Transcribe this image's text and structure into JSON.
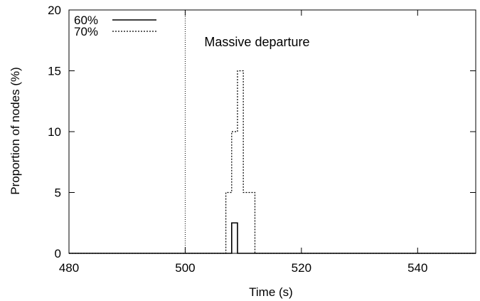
{
  "chart_data": {
    "type": "line",
    "title": "",
    "xlabel": "Time (s)",
    "ylabel": "Proportion of nodes (%)",
    "xlim": [
      480,
      550
    ],
    "ylim": [
      0,
      20
    ],
    "x_ticks": [
      480,
      500,
      520,
      540
    ],
    "y_ticks": [
      0,
      5,
      10,
      15,
      20
    ],
    "grid": false,
    "legend_position": "top-left",
    "series": [
      {
        "name": "60%",
        "style": "solid",
        "color": "#000000",
        "step_points": [
          [
            480,
            0
          ],
          [
            508,
            0
          ],
          [
            508,
            2.5
          ],
          [
            509,
            2.5
          ],
          [
            509,
            0
          ],
          [
            550,
            0
          ]
        ]
      },
      {
        "name": "70%",
        "style": "dotted",
        "color": "#000000",
        "step_points": [
          [
            480,
            0
          ],
          [
            507,
            0
          ],
          [
            507,
            5
          ],
          [
            508,
            5
          ],
          [
            508,
            10
          ],
          [
            509,
            10
          ],
          [
            509,
            15
          ],
          [
            510,
            15
          ],
          [
            510,
            5
          ],
          [
            512,
            5
          ],
          [
            512,
            0
          ],
          [
            550,
            0
          ]
        ]
      }
    ],
    "annotations": [
      {
        "type": "vline",
        "x": 500,
        "style": "dotted",
        "label": "Massive departure"
      }
    ]
  }
}
